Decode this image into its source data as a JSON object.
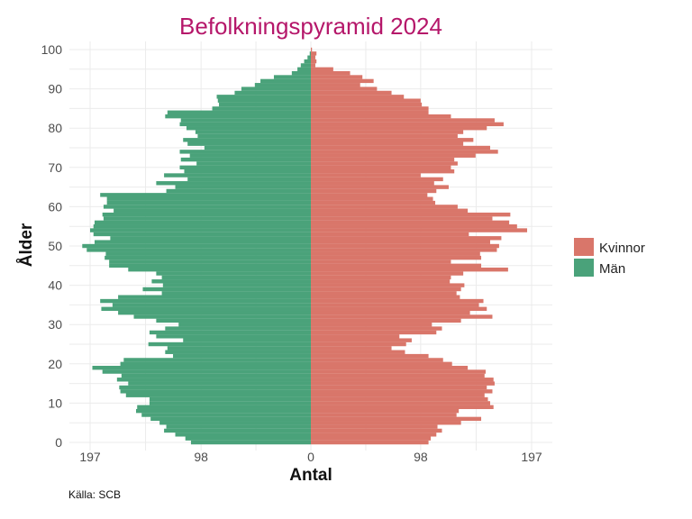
{
  "chart_data": {
    "type": "bar",
    "orientation": "horizontal",
    "title": "Befolkningspyramid 2024",
    "xlabel": "Antal",
    "ylabel": "Ålder",
    "caption": "Källa: SCB",
    "x_ticks": [
      "197",
      "98",
      "0",
      "98",
      "197"
    ],
    "y_ticks": [
      "0",
      "10",
      "20",
      "30",
      "40",
      "50",
      "60",
      "70",
      "80",
      "90",
      "100"
    ],
    "xlim": [
      -197,
      197
    ],
    "ylim": [
      0,
      100
    ],
    "grid": true,
    "legend_position": "right",
    "ages": [
      0,
      1,
      2,
      3,
      4,
      5,
      6,
      7,
      8,
      9,
      10,
      11,
      12,
      13,
      14,
      15,
      16,
      17,
      18,
      19,
      20,
      21,
      22,
      23,
      24,
      25,
      26,
      27,
      28,
      29,
      30,
      31,
      32,
      33,
      34,
      35,
      36,
      37,
      38,
      39,
      40,
      41,
      42,
      43,
      44,
      45,
      46,
      47,
      48,
      49,
      50,
      51,
      52,
      53,
      54,
      55,
      56,
      57,
      58,
      59,
      60,
      61,
      62,
      63,
      64,
      65,
      66,
      67,
      68,
      69,
      70,
      71,
      72,
      73,
      74,
      75,
      76,
      77,
      78,
      79,
      80,
      81,
      82,
      83,
      84,
      85,
      86,
      87,
      88,
      89,
      90,
      91,
      92,
      93,
      94,
      95,
      96,
      97,
      98,
      99,
      100
    ],
    "series": [
      {
        "name": "Kvinnor",
        "color": "#d9766a",
        "values": [
          105,
          107,
          112,
          117,
          113,
          134,
          152,
          130,
          132,
          163,
          160,
          158,
          155,
          162,
          157,
          164,
          163,
          155,
          156,
          140,
          126,
          118,
          105,
          84,
          72,
          85,
          90,
          79,
          112,
          117,
          108,
          134,
          162,
          142,
          157,
          150,
          154,
          133,
          130,
          134,
          137,
          124,
          125,
          136,
          176,
          152,
          125,
          152,
          151,
          166,
          168,
          160,
          170,
          141,
          193,
          184,
          177,
          162,
          178,
          140,
          131,
          111,
          109,
          104,
          112,
          123,
          110,
          118,
          98,
          128,
          125,
          131,
          128,
          147,
          167,
          160,
          136,
          145,
          131,
          136,
          157,
          172,
          164,
          125,
          105,
          105,
          99,
          98,
          83,
          72,
          59,
          44,
          56,
          46,
          35,
          20,
          4,
          5,
          4,
          5,
          1
        ]
      },
      {
        "name": "Män",
        "color": "#4aa27a",
        "values": [
          -107,
          -112,
          -121,
          -131,
          -129,
          -135,
          -143,
          -151,
          -156,
          -155,
          -144,
          -144,
          -165,
          -170,
          -171,
          -163,
          -173,
          -169,
          -186,
          -195,
          -170,
          -167,
          -123,
          -130,
          -128,
          -145,
          -114,
          -138,
          -144,
          -130,
          -118,
          -138,
          -158,
          -172,
          -187,
          -177,
          -188,
          -172,
          -133,
          -150,
          -132,
          -142,
          -133,
          -138,
          -163,
          -180,
          -180,
          -184,
          -183,
          -200,
          -204,
          -193,
          -179,
          -194,
          -197,
          -194,
          -193,
          -185,
          -186,
          -176,
          -185,
          -182,
          -182,
          -188,
          -129,
          -121,
          -138,
          -110,
          -131,
          -113,
          -117,
          -102,
          -116,
          -108,
          -117,
          -95,
          -110,
          -114,
          -101,
          -103,
          -111,
          -117,
          -116,
          -130,
          -128,
          -88,
          -82,
          -83,
          -84,
          -68,
          -62,
          -50,
          -45,
          -33,
          -17,
          -12,
          -9,
          -6,
          -3,
          -1,
          0
        ]
      }
    ]
  }
}
